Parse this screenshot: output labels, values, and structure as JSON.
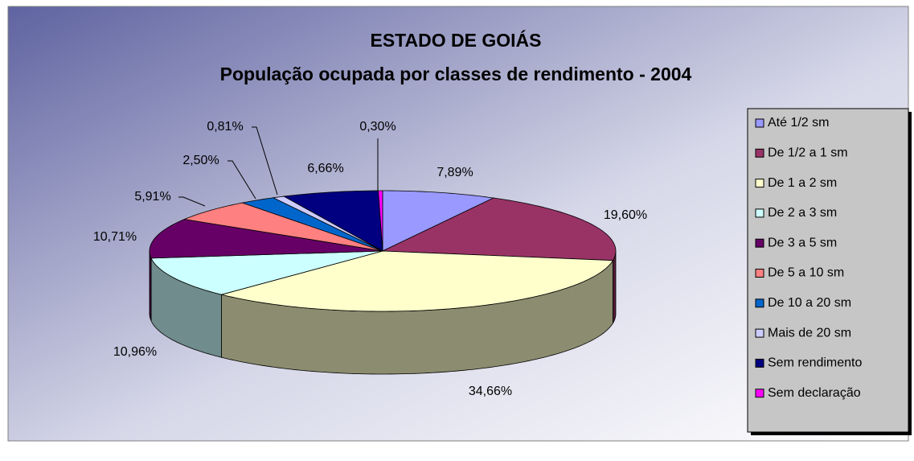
{
  "chart_data": {
    "type": "pie3d",
    "title": "ESTADO DE GOIÁS",
    "subtitle": "População ocupada por classes de rendimento - 2004",
    "categories": [
      "Até 1/2 sm",
      "De 1/2 a 1 sm",
      "De 1 a 2 sm",
      "De 2 a 3 sm",
      "De 3 a 5 sm",
      "De 5 a 10 sm",
      "De 10 a 20 sm",
      "Mais de 20 sm",
      "Sem rendimento",
      "Sem declaração"
    ],
    "values": [
      7.89,
      19.6,
      34.66,
      10.96,
      10.71,
      5.91,
      2.5,
      0.81,
      6.66,
      0.3
    ],
    "value_labels": [
      "7,89%",
      "19,60%",
      "34,66%",
      "10,96%",
      "10,71%",
      "5,91%",
      "2,50%",
      "0,81%",
      "6,66%",
      "0,30%"
    ],
    "colors": [
      "#9999ff",
      "#993366",
      "#ffffcc",
      "#ccffff",
      "#660066",
      "#ff8080",
      "#0066cc",
      "#ccccff",
      "#000080",
      "#ff00ff"
    ],
    "legend": "right"
  }
}
